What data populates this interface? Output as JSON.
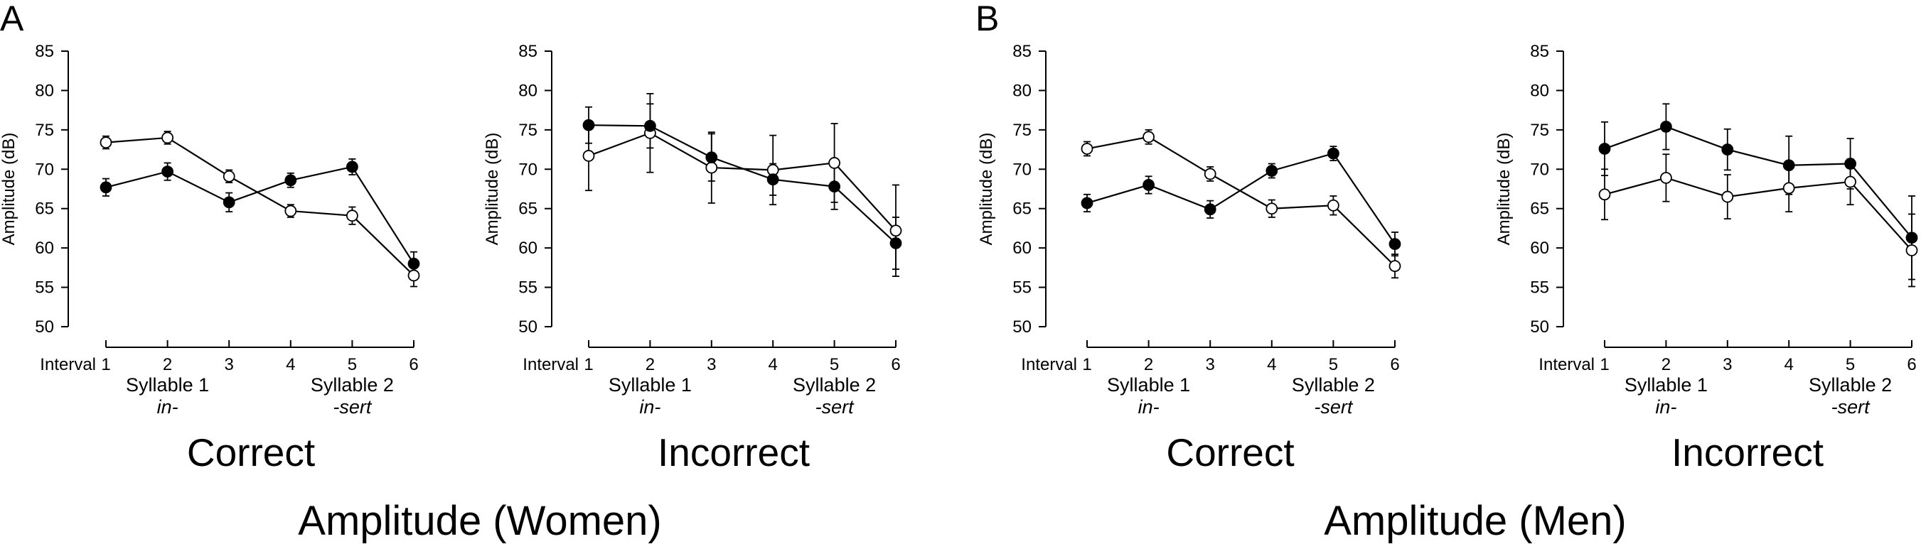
{
  "figure": {
    "panels": [
      {
        "letter": "A",
        "title": "Amplitude (Women)"
      },
      {
        "letter": "B",
        "title": "Amplitude (Men)"
      }
    ]
  },
  "chart_data": [
    {
      "type": "line",
      "panel": "A",
      "title": "Correct",
      "xlabel": "Interval",
      "ylabel": "Amplitude (dB)",
      "x": [
        1,
        2,
        3,
        4,
        5,
        6
      ],
      "ylim": [
        50,
        85
      ],
      "yticks": [
        50,
        55,
        60,
        65,
        70,
        75,
        80,
        85
      ],
      "groups": [
        {
          "label": "Syllable 1",
          "sub": "in-"
        },
        {
          "label": "Syllable 2",
          "sub": "-sert"
        }
      ],
      "series": [
        {
          "marker": "open",
          "values": [
            73.4,
            74.0,
            69.1,
            64.7,
            64.1,
            56.5
          ],
          "errors": [
            0.8,
            0.8,
            0.8,
            0.8,
            1.1,
            1.4
          ]
        },
        {
          "marker": "filled",
          "values": [
            67.7,
            69.7,
            65.8,
            68.6,
            70.3,
            58.0
          ],
          "errors": [
            1.1,
            1.1,
            1.2,
            0.9,
            1.0,
            1.5
          ]
        }
      ]
    },
    {
      "type": "line",
      "panel": "A",
      "title": "Incorrect",
      "xlabel": "Interval",
      "ylabel": "Amplitude (dB)",
      "x": [
        1,
        2,
        3,
        4,
        5,
        6
      ],
      "ylim": [
        50,
        85
      ],
      "yticks": [
        50,
        55,
        60,
        65,
        70,
        75,
        80,
        85
      ],
      "groups": [
        {
          "label": "Syllable 1",
          "sub": "in-"
        },
        {
          "label": "Syllable 2",
          "sub": "-sert"
        }
      ],
      "series": [
        {
          "marker": "open",
          "values": [
            71.7,
            74.6,
            70.2,
            69.9,
            70.8,
            62.2
          ],
          "errors": [
            4.4,
            5.0,
            4.5,
            4.4,
            5.0,
            5.8
          ]
        },
        {
          "marker": "filled",
          "values": [
            75.6,
            75.5,
            71.5,
            68.7,
            67.8,
            60.6
          ],
          "errors": [
            2.3,
            2.8,
            3.0,
            2.0,
            2.9,
            3.3
          ]
        }
      ]
    },
    {
      "type": "line",
      "panel": "B",
      "title": "Correct",
      "xlabel": "Interval",
      "ylabel": "Amplitude (dB)",
      "x": [
        1,
        2,
        3,
        4,
        5,
        6
      ],
      "ylim": [
        50,
        85
      ],
      "yticks": [
        50,
        55,
        60,
        65,
        70,
        75,
        80,
        85
      ],
      "groups": [
        {
          "label": "Syllable 1",
          "sub": "in-"
        },
        {
          "label": "Syllable 2",
          "sub": "-sert"
        }
      ],
      "series": [
        {
          "marker": "open",
          "values": [
            72.6,
            74.1,
            69.4,
            65.0,
            65.4,
            57.7
          ],
          "errors": [
            0.9,
            0.9,
            0.9,
            1.1,
            1.2,
            1.5
          ]
        },
        {
          "marker": "filled",
          "values": [
            65.7,
            68.0,
            64.9,
            69.8,
            72.0,
            60.5
          ],
          "errors": [
            1.1,
            1.1,
            1.1,
            0.9,
            0.9,
            1.5
          ]
        }
      ]
    },
    {
      "type": "line",
      "panel": "B",
      "title": "Incorrect",
      "xlabel": "Interval",
      "ylabel": "Amplitude (dB)",
      "x": [
        1,
        2,
        3,
        4,
        5,
        6
      ],
      "ylim": [
        50,
        85
      ],
      "yticks": [
        50,
        55,
        60,
        65,
        70,
        75,
        80,
        85
      ],
      "groups": [
        {
          "label": "Syllable 1",
          "sub": "in-"
        },
        {
          "label": "Syllable 2",
          "sub": "-sert"
        }
      ],
      "series": [
        {
          "marker": "open",
          "values": [
            66.8,
            68.9,
            66.5,
            67.6,
            68.4,
            59.7
          ],
          "errors": [
            3.2,
            3.0,
            2.8,
            3.0,
            2.9,
            4.6
          ]
        },
        {
          "marker": "filled",
          "values": [
            72.6,
            75.4,
            72.5,
            70.5,
            70.7,
            61.3
          ],
          "errors": [
            3.4,
            2.9,
            2.6,
            3.7,
            3.2,
            5.3
          ]
        }
      ]
    }
  ]
}
